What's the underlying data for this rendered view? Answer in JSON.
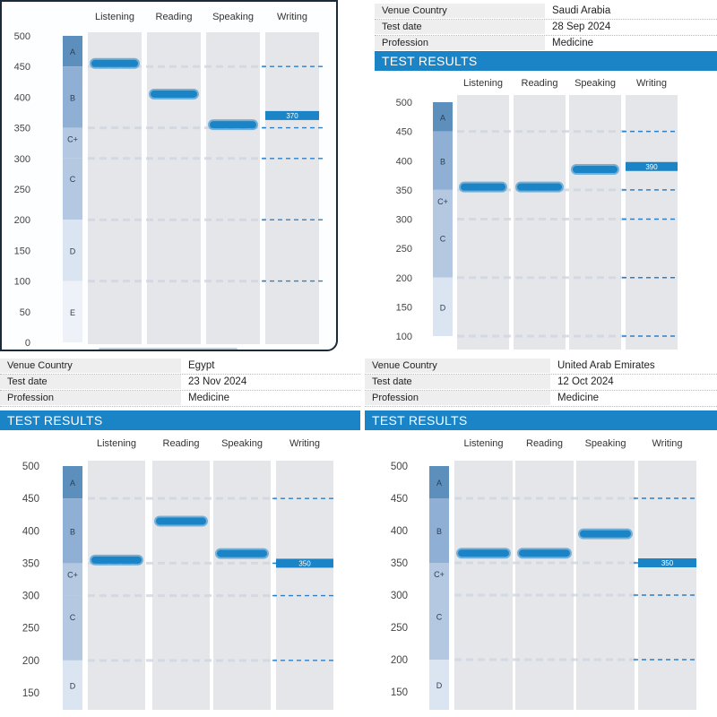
{
  "reports": [
    {
      "id": "r1",
      "info": [],
      "banner": "",
      "columns": [
        "Listening",
        "Reading",
        "Speaking",
        "Writing"
      ],
      "yticks": [
        0,
        50,
        100,
        150,
        200,
        250,
        300,
        350,
        400,
        450,
        500
      ],
      "bands": [
        "A",
        "B",
        "C+",
        "C",
        "D",
        "E"
      ],
      "scores": {
        "Listening": 455,
        "Reading": 405,
        "Speaking": 355,
        "Writing": 370
      },
      "writing_label": "370"
    },
    {
      "id": "r2",
      "info": [
        {
          "label": "Venue Country",
          "value": "Saudi Arabia"
        },
        {
          "label": "Test date",
          "value": "28 Sep 2024"
        },
        {
          "label": "Profession",
          "value": "Medicine"
        }
      ],
      "banner": "TEST RESULTS",
      "columns": [
        "Listening",
        "Reading",
        "Speaking",
        "Writing"
      ],
      "yticks": [
        100,
        150,
        200,
        250,
        300,
        350,
        400,
        450,
        500
      ],
      "bands": [
        "A",
        "B",
        "C+",
        "C",
        "D"
      ],
      "scores": {
        "Listening": 355,
        "Reading": 355,
        "Speaking": 385,
        "Writing": 390
      },
      "writing_label": "390"
    },
    {
      "id": "r3",
      "info": [
        {
          "label": "Venue Country",
          "value": "Egypt"
        },
        {
          "label": "Test date",
          "value": "23 Nov 2024"
        },
        {
          "label": "Profession",
          "value": "Medicine"
        }
      ],
      "banner": "TEST RESULTS",
      "columns": [
        "Listening",
        "Reading",
        "Speaking",
        "Writing"
      ],
      "yticks": [
        150,
        200,
        250,
        300,
        350,
        400,
        450,
        500
      ],
      "bands": [
        "A",
        "B",
        "C+",
        "C",
        "D"
      ],
      "scores": {
        "Listening": 355,
        "Reading": 415,
        "Speaking": 365,
        "Writing": 350
      },
      "writing_label": "350"
    },
    {
      "id": "r4",
      "info": [
        {
          "label": "Venue Country",
          "value": "United Arab Emirates"
        },
        {
          "label": "Test date",
          "value": "12 Oct 2024"
        },
        {
          "label": "Profession",
          "value": "Medicine"
        }
      ],
      "banner": "TEST RESULTS",
      "columns": [
        "Listening",
        "Reading",
        "Speaking",
        "Writing"
      ],
      "yticks": [
        150,
        200,
        250,
        300,
        350,
        400,
        450,
        500
      ],
      "bands": [
        "A",
        "B",
        "C+",
        "C",
        "D"
      ],
      "scores": {
        "Listening": 365,
        "Reading": 365,
        "Speaking": 395,
        "Writing": 350
      },
      "writing_label": "350"
    }
  ],
  "colors": {
    "banner": "#1b84c6",
    "score_bar": "#1b84c6",
    "band_A": "#5d8fbd",
    "band_B": "#8fb0d4",
    "band_C": "#b4c8e2",
    "band_D": "#dbe5f2",
    "column_bg": "#e4e6ea",
    "dashed": "#2f7fc4"
  }
}
